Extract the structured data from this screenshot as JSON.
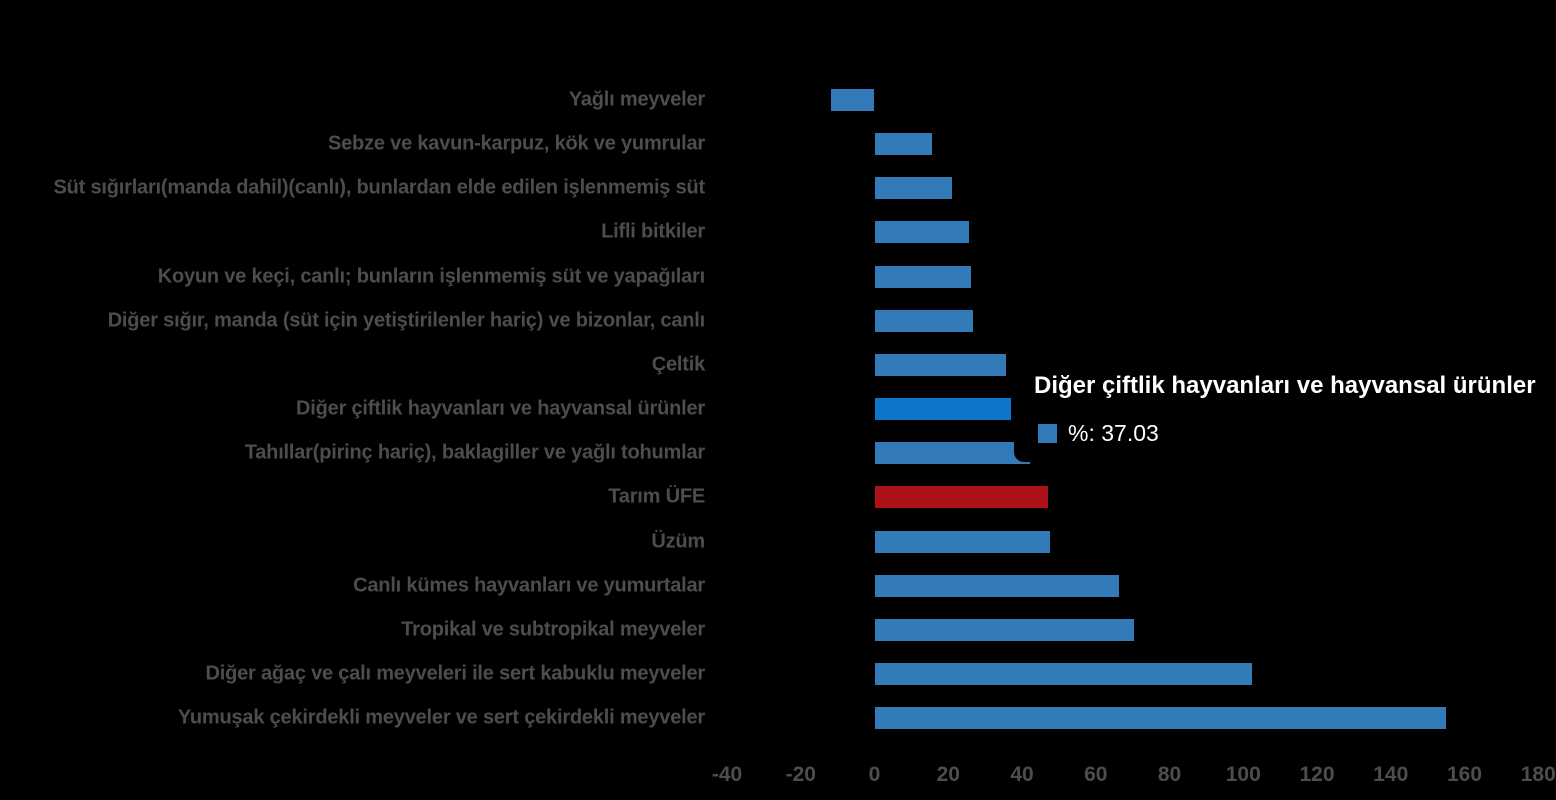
{
  "background_color": "#000000",
  "chart_data": {
    "type": "bar",
    "orientation": "horizontal",
    "title": "",
    "xlabel": "",
    "ylabel": "",
    "xlim": [
      -40,
      180
    ],
    "grid": false,
    "legend_position": "none",
    "x_ticks": [
      "-40",
      "-20",
      "0",
      "20",
      "40",
      "60",
      "80",
      "100",
      "120",
      "140",
      "160",
      "180"
    ],
    "categories": [
      "Yağlı meyveler",
      "Sebze ve kavun-karpuz, kök ve yumrular",
      "Süt sığırları(manda dahil)(canlı), bunlardan elde edilen işlenmemiş süt",
      "Lifli bitkiler",
      "Koyun ve keçi, canlı; bunların işlenmemiş süt ve yapağıları",
      "Diğer sığır, manda (süt için yetiştirilenler hariç) ve bizonlar, canlı",
      "Çeltik",
      "Diğer çiftlik hayvanları ve hayvansal ürünler",
      "Tahıllar(pirinç hariç), baklagiller ve yağlı tohumlar",
      "Tarım ÜFE",
      "Üzüm",
      "Canlı kümes hayvanları ve yumurtalar",
      "Tropikal ve subtropikal meyveler",
      "Diğer ağaç ve çalı meyveleri ile sert kabuklu meyveler",
      "Yumuşak çekirdekli meyveler ve sert çekirdekli meyveler"
    ],
    "values": [
      -11.8,
      15.7,
      20.9,
      25.6,
      26.2,
      26.8,
      35.7,
      37.03,
      42.2,
      47.0,
      47.6,
      66.2,
      70.5,
      102.4,
      155.1
    ],
    "series_name": "%",
    "bar_color": "#327BB8",
    "highlight_index": 9,
    "highlight_bar_color": "#AC1218",
    "hover_index": 7,
    "hover_bar_color": "#0E76C8",
    "label_color": "#4D4D4D"
  },
  "tooltip": {
    "title": "Diğer çiftlik hayvanları ve hayvansal ürünler",
    "series_label": "%",
    "value": "37.03",
    "text": "%: 37.03",
    "swatch_color": "#327BB8"
  }
}
